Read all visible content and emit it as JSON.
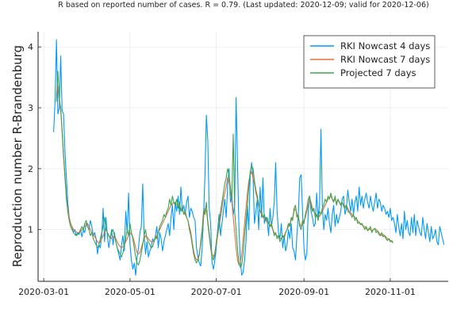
{
  "chart_data": {
    "type": "line",
    "title": "R based on reported number of cases. R = 0.79. (Last updated: 2020-12-09; valid for 2020-12-06)",
    "xlabel": "",
    "ylabel": "Reproduction number R-Brandenburg",
    "xlim": [
      "2020-02-26",
      "2020-12-12"
    ],
    "ylim": [
      0.15,
      4.25
    ],
    "xticks": [
      {
        "date": "2020-03-01",
        "label": "2020-03-01"
      },
      {
        "date": "2020-05-01",
        "label": "2020-05-01"
      },
      {
        "date": "2020-07-01",
        "label": "2020-07-01"
      },
      {
        "date": "2020-09-01",
        "label": "2020-09-01"
      },
      {
        "date": "2020-11-01",
        "label": "2020-11-01"
      }
    ],
    "yticks": [
      {
        "value": 1,
        "label": "1"
      },
      {
        "value": 2,
        "label": "2"
      },
      {
        "value": 3,
        "label": "3"
      },
      {
        "value": 4,
        "label": "4"
      }
    ],
    "grid": true,
    "legend_position": "top-right",
    "series": [
      {
        "name": "RKI Nowcast 4 days",
        "color": "#009AFA",
        "start": "2020-03-08",
        "values": [
          2.6,
          3.1,
          4.12,
          2.9,
          3.0,
          3.85,
          2.95,
          2.9,
          2.3,
          1.85,
          1.45,
          1.2,
          1.1,
          1.05,
          0.95,
          1.0,
          0.9,
          0.95,
          0.92,
          1.0,
          0.88,
          1.0,
          0.95,
          1.1,
          1.05,
          1.0,
          1.15,
          1.05,
          0.9,
          0.95,
          0.85,
          0.6,
          0.75,
          0.7,
          0.9,
          1.35,
          0.8,
          1.2,
          0.9,
          0.7,
          0.85,
          1.0,
          0.75,
          0.95,
          0.8,
          0.7,
          0.6,
          0.5,
          0.75,
          0.9,
          0.65,
          1.3,
          0.95,
          1.6,
          0.75,
          0.5,
          0.35,
          0.45,
          0.25,
          0.55,
          0.7,
          0.95,
          1.05,
          1.75,
          0.9,
          0.6,
          0.8,
          0.55,
          0.65,
          0.7,
          0.85,
          0.8,
          0.9,
          1.05,
          0.7,
          0.95,
          0.85,
          0.65,
          0.8,
          0.9,
          1.0,
          1.1,
          0.9,
          1.2,
          1.4,
          1.0,
          1.45,
          1.3,
          1.55,
          1.25,
          1.7,
          1.3,
          1.4,
          1.25,
          1.45,
          1.55,
          1.2,
          1.35,
          1.3,
          1.2,
          1.15,
          0.7,
          0.55,
          0.45,
          0.4,
          0.7,
          1.2,
          1.9,
          2.88,
          2.45,
          1.35,
          1.1,
          0.45,
          0.35,
          0.5,
          0.7,
          1.0,
          1.25,
          0.9,
          1.1,
          1.3,
          1.5,
          1.2,
          1.7,
          2.0,
          1.45,
          1.55,
          1.25,
          1.4,
          3.17,
          2.1,
          1.05,
          0.5,
          0.25,
          0.3,
          0.5,
          0.8,
          1.4,
          1.0,
          1.9,
          2.1,
          1.85,
          1.1,
          1.3,
          1.5,
          1.0,
          1.7,
          1.2,
          1.85,
          1.1,
          1.2,
          1.15,
          0.9,
          1.35,
          1.05,
          1.2,
          1.45,
          2.1,
          1.3,
          0.95,
          0.85,
          1.1,
          0.7,
          0.9,
          0.65,
          0.75,
          1.0,
          0.85,
          1.1,
          0.7,
          0.65,
          0.5,
          0.9,
          1.25,
          1.85,
          1.9,
          1.3,
          0.7,
          0.5,
          0.6,
          1.3,
          1.55,
          1.3,
          1.2,
          1.05,
          1.1,
          1.6,
          1.2,
          1.4,
          2.65,
          1.4,
          1.0,
          1.25,
          1.15,
          1.35,
          1.1,
          0.95,
          1.25,
          1.4,
          1.05,
          1.25,
          1.1,
          1.2,
          1.3,
          1.5,
          1.55,
          1.25,
          1.35,
          1.65,
          1.45,
          1.3,
          1.5,
          1.25,
          1.45,
          1.55,
          1.3,
          1.7,
          1.4,
          1.55,
          1.35,
          1.5,
          1.6,
          1.45,
          1.35,
          1.55,
          1.4,
          1.3,
          1.45,
          1.6,
          1.35,
          1.5,
          1.45,
          1.3,
          1.4,
          1.35,
          1.25,
          1.3,
          1.2,
          1.35,
          1.15,
          1.2,
          1.1,
          0.95,
          1.25,
          1.05,
          0.9,
          1.1,
          0.85,
          1.3,
          1.0,
          1.15,
          0.95,
          0.9,
          1.2,
          0.95,
          1.25,
          0.9,
          1.15,
          1.05,
          0.95,
          0.9,
          1.2,
          1.0,
          0.85,
          1.1,
          0.95,
          0.8,
          1.05,
          0.85,
          0.9,
          1.0,
          0.8,
          0.75,
          1.05,
          0.95,
          0.85,
          0.75
        ]
      },
      {
        "name": "RKI Nowcast 7 days",
        "color": "#E26F46",
        "start": "2020-03-10",
        "values": [
          3.2,
          3.35,
          3.1,
          2.95,
          2.65,
          2.25,
          1.9,
          1.55,
          1.35,
          1.2,
          1.1,
          1.05,
          1.0,
          0.98,
          0.96,
          0.95,
          0.95,
          0.97,
          1.0,
          1.02,
          1.05,
          1.08,
          1.1,
          1.05,
          1.0,
          0.95,
          0.92,
          0.88,
          0.85,
          0.8,
          0.78,
          0.8,
          0.85,
          0.9,
          0.95,
          1.0,
          0.95,
          0.9,
          0.88,
          0.85,
          0.88,
          0.9,
          0.85,
          0.8,
          0.75,
          0.72,
          0.7,
          0.72,
          0.75,
          0.8,
          0.85,
          0.9,
          0.95,
          0.92,
          0.88,
          0.8,
          0.7,
          0.62,
          0.6,
          0.62,
          0.7,
          0.78,
          0.85,
          0.9,
          0.88,
          0.85,
          0.82,
          0.8,
          0.8,
          0.82,
          0.85,
          0.9,
          0.95,
          1.0,
          1.05,
          1.1,
          1.15,
          1.2,
          1.25,
          1.3,
          1.35,
          1.4,
          1.42,
          1.45,
          1.4,
          1.42,
          1.38,
          1.4,
          1.35,
          1.32,
          1.28,
          1.25,
          1.2,
          1.15,
          1.05,
          0.95,
          0.8,
          0.65,
          0.55,
          0.5,
          0.52,
          0.6,
          0.75,
          0.95,
          1.2,
          1.35,
          1.3,
          1.15,
          0.95,
          0.75,
          0.6,
          0.55,
          0.62,
          0.75,
          0.9,
          1.05,
          1.2,
          1.35,
          1.5,
          1.6,
          1.7,
          1.85,
          1.8,
          1.65,
          1.45,
          1.2,
          0.95,
          0.7,
          0.5,
          0.42,
          0.45,
          0.6,
          0.85,
          1.1,
          1.35,
          1.6,
          1.8,
          1.9,
          1.95,
          1.85,
          1.75,
          1.6,
          1.5,
          1.4,
          1.3,
          1.25,
          1.2,
          1.18,
          1.15,
          1.12,
          1.1,
          1.08,
          1.05,
          1.0,
          0.95,
          0.92,
          0.9,
          0.88,
          0.85,
          0.85,
          0.88,
          0.9,
          0.95,
          1.0,
          1.05,
          1.1,
          1.15,
          1.2,
          1.3,
          1.35,
          1.25,
          1.2,
          1.1,
          1.05,
          1.1,
          1.15,
          1.2,
          1.3,
          1.4,
          1.5,
          1.45,
          1.35,
          1.3,
          1.25,
          1.22,
          1.2,
          1.22,
          1.25,
          1.3,
          1.35,
          1.4,
          1.45,
          1.5,
          1.52,
          1.55,
          1.5,
          1.48,
          1.5,
          1.45,
          1.48,
          1.45,
          1.42,
          1.45,
          1.4,
          1.38,
          1.4,
          1.35,
          1.3,
          1.28,
          1.25,
          1.22,
          1.2,
          1.18,
          1.15,
          1.12,
          1.1,
          1.08,
          1.05,
          1.05,
          1.02,
          1.0,
          1.02,
          1.0,
          0.98,
          1.0,
          1.02,
          1.0,
          0.98,
          0.95,
          0.92,
          0.9,
          0.92,
          0.9,
          0.88,
          0.85,
          0.85,
          0.82,
          0.8,
          0.79
        ]
      },
      {
        "name": "Projected 7 days",
        "color": "#3DA44D",
        "start": "2020-03-10",
        "values": [
          3.1,
          3.6,
          3.15,
          3.0,
          2.6,
          2.2,
          1.85,
          1.5,
          1.3,
          1.15,
          1.05,
          1.0,
          0.95,
          0.92,
          0.9,
          0.92,
          0.95,
          1.0,
          1.05,
          1.0,
          1.1,
          1.15,
          1.05,
          1.0,
          0.9,
          0.95,
          0.85,
          0.8,
          0.75,
          0.7,
          0.75,
          0.85,
          0.95,
          1.05,
          1.2,
          1.0,
          0.95,
          0.9,
          0.85,
          0.95,
          1.0,
          0.9,
          0.8,
          0.7,
          0.65,
          0.6,
          0.55,
          0.62,
          0.75,
          0.85,
          1.0,
          0.9,
          1.1,
          0.95,
          0.85,
          0.7,
          0.55,
          0.45,
          0.42,
          0.5,
          0.62,
          0.75,
          0.9,
          1.0,
          0.85,
          0.8,
          0.75,
          0.7,
          0.72,
          0.8,
          0.9,
          0.85,
          0.95,
          1.05,
          1.1,
          1.15,
          1.25,
          1.2,
          1.3,
          1.35,
          1.5,
          1.4,
          1.55,
          1.45,
          1.4,
          1.5,
          1.35,
          1.45,
          1.3,
          1.35,
          1.25,
          1.3,
          1.2,
          1.15,
          1.0,
          0.9,
          0.75,
          0.6,
          0.5,
          0.45,
          0.5,
          0.58,
          0.8,
          1.0,
          1.3,
          1.25,
          1.45,
          1.1,
          0.9,
          0.7,
          0.55,
          0.5,
          0.6,
          0.8,
          0.95,
          1.1,
          1.3,
          1.45,
          1.6,
          1.75,
          1.85,
          2.0,
          1.9,
          1.7,
          1.5,
          2.57,
          1.3,
          1.0,
          0.7,
          0.45,
          0.38,
          0.42,
          0.6,
          0.9,
          1.15,
          1.4,
          1.7,
          1.95,
          2.05,
          2.0,
          1.8,
          1.65,
          1.55,
          1.4,
          1.3,
          1.3,
          1.2,
          1.25,
          1.15,
          1.2,
          1.1,
          1.05,
          1.1,
          1.0,
          0.9,
          0.95,
          0.85,
          0.9,
          0.8,
          0.85,
          0.9,
          0.85,
          0.95,
          1.0,
          1.1,
          1.05,
          1.2,
          1.15,
          1.35,
          1.4,
          1.2,
          1.25,
          1.05,
          1.0,
          1.15,
          1.1,
          1.25,
          1.35,
          1.5,
          1.55,
          1.4,
          1.3,
          1.35,
          1.2,
          1.25,
          1.15,
          1.3,
          1.25,
          1.35,
          1.4,
          1.5,
          1.45,
          1.55,
          1.5,
          1.6,
          1.5,
          1.45,
          1.55,
          1.4,
          1.5,
          1.45,
          1.4,
          1.45,
          1.38,
          1.35,
          1.4,
          1.3,
          1.28,
          1.25,
          1.2,
          1.25,
          1.15,
          1.2,
          1.1,
          1.12,
          1.08,
          1.1,
          1.05,
          1.0,
          1.05,
          0.98,
          1.0,
          1.05,
          0.95,
          1.0,
          1.02,
          0.95,
          0.98,
          0.92,
          0.9,
          0.95,
          0.88,
          0.9,
          0.85,
          0.82,
          0.85,
          0.8,
          0.82,
          0.78
        ]
      }
    ]
  }
}
